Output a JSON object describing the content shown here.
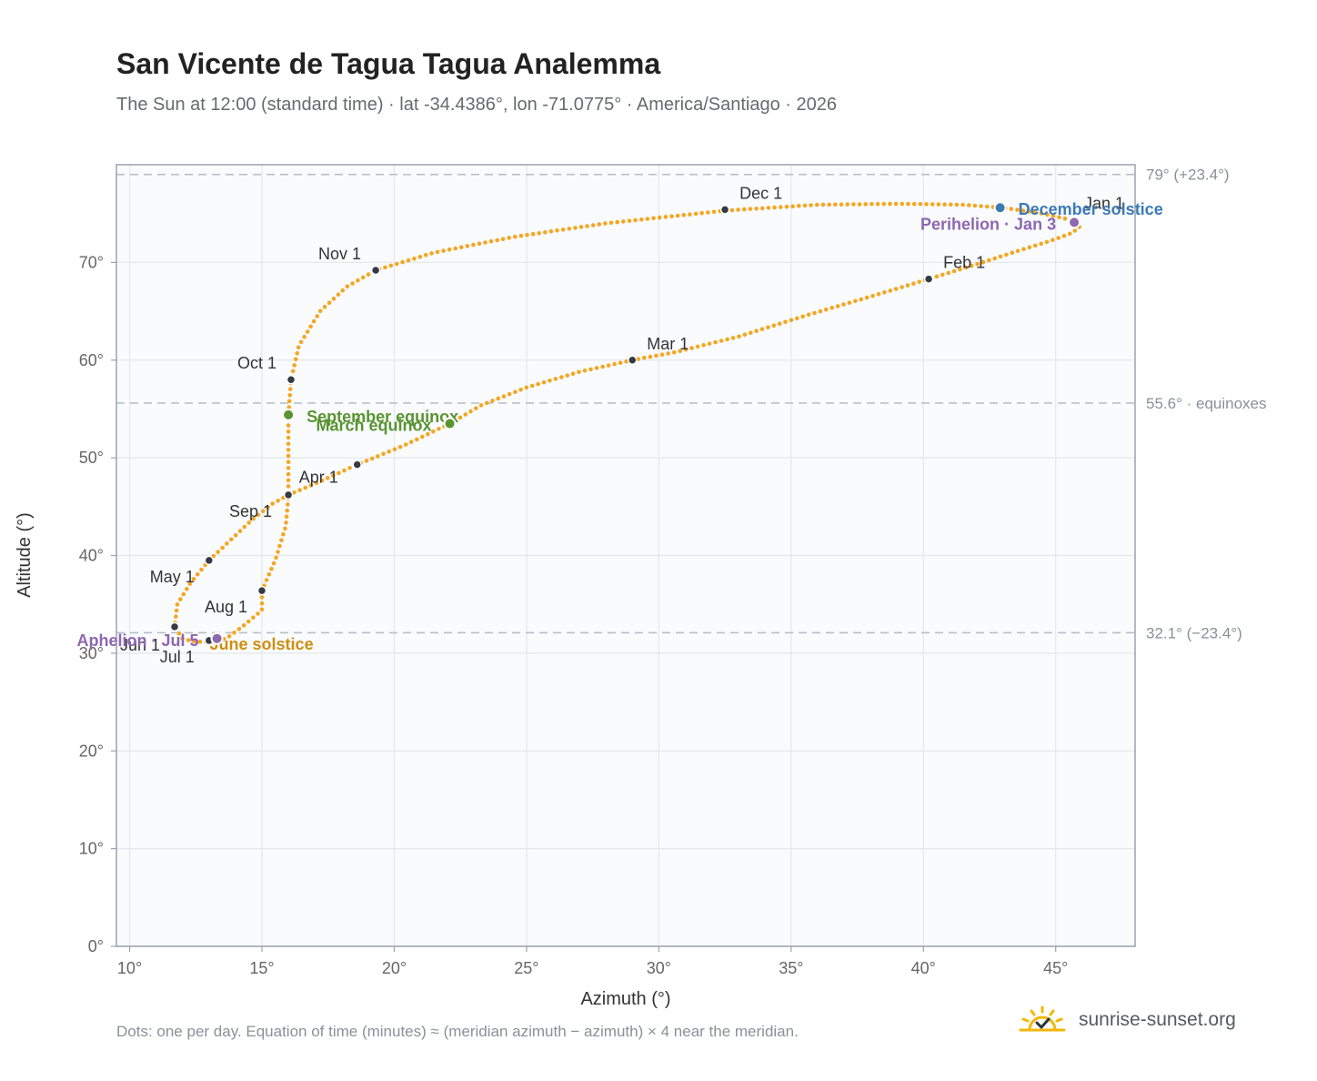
{
  "chart_data": {
    "type": "scatter",
    "title": "San Vicente de Tagua Tagua Analemma",
    "subtitle": "The Sun at 12:00 (standard time) · lat -34.4386°, lon -71.0775° · America/Santiago · 2026",
    "xlabel": "Azimuth (°)",
    "ylabel": "Altitude (°)",
    "xlim": [
      9.5,
      48
    ],
    "ylim": [
      0,
      80
    ],
    "x_ticks": [
      "10°",
      "15°",
      "20°",
      "25°",
      "30°",
      "35°",
      "40°",
      "45°"
    ],
    "y_ticks": [
      "0°",
      "10°",
      "20°",
      "30°",
      "40°",
      "50°",
      "60°",
      "70°"
    ],
    "grid": true,
    "curve_path": [
      [
        45.8,
        74.2
      ],
      [
        45.9,
        73.6
      ],
      [
        45.6,
        73.0
      ],
      [
        44.8,
        72.2
      ],
      [
        43.6,
        71.2
      ],
      [
        42.0,
        69.8
      ],
      [
        40.2,
        68.3
      ],
      [
        38.0,
        66.5
      ],
      [
        35.6,
        64.6
      ],
      [
        33.0,
        62.4
      ],
      [
        30.6,
        60.8
      ],
      [
        29.0,
        60.0
      ],
      [
        27.0,
        58.8
      ],
      [
        25.0,
        57.2
      ],
      [
        23.3,
        55.4
      ],
      [
        22.1,
        53.5
      ],
      [
        20.4,
        51.3
      ],
      [
        18.6,
        49.3
      ],
      [
        17.3,
        47.7
      ],
      [
        16.0,
        46.2
      ],
      [
        15.4,
        45.3
      ],
      [
        14.6,
        43.6
      ],
      [
        13.9,
        41.8
      ],
      [
        13.0,
        39.5
      ],
      [
        12.3,
        37.2
      ],
      [
        11.8,
        35.0
      ],
      [
        11.7,
        32.7
      ],
      [
        12.0,
        31.5
      ],
      [
        12.4,
        31.2
      ],
      [
        13.2,
        31.1
      ],
      [
        13.7,
        31.6
      ],
      [
        14.3,
        32.8
      ],
      [
        15.0,
        34.4
      ],
      [
        15.0,
        36.4
      ],
      [
        15.5,
        39.5
      ],
      [
        15.9,
        43.0
      ],
      [
        16.0,
        46.0
      ],
      [
        16.0,
        50.0
      ],
      [
        16.0,
        54.4
      ],
      [
        16.1,
        58.0
      ],
      [
        16.4,
        61.5
      ],
      [
        17.2,
        65.0
      ],
      [
        18.2,
        67.5
      ],
      [
        19.3,
        69.2
      ],
      [
        21.5,
        71.0
      ],
      [
        24.5,
        72.6
      ],
      [
        28.0,
        74.0
      ],
      [
        32.5,
        75.3
      ],
      [
        36.0,
        75.9
      ],
      [
        39.0,
        76.0
      ],
      [
        41.5,
        75.9
      ],
      [
        43.0,
        75.6
      ],
      [
        44.5,
        75.0
      ],
      [
        45.8,
        74.2
      ]
    ],
    "months": [
      {
        "label": "Jan 1",
        "x": 45.8,
        "y": 74.2,
        "lx": 8,
        "ly": -14,
        "anchor": "start"
      },
      {
        "label": "Feb 1",
        "x": 40.2,
        "y": 68.3,
        "lx": 16,
        "ly": -12,
        "anchor": "start"
      },
      {
        "label": "Mar 1",
        "x": 29.0,
        "y": 60.0,
        "lx": 16,
        "ly": -12,
        "anchor": "start"
      },
      {
        "label": "Apr 1",
        "x": 18.6,
        "y": 49.3,
        "lx": -64,
        "ly": 20,
        "anchor": "start"
      },
      {
        "label": "May 1",
        "x": 13.0,
        "y": 39.5,
        "lx": -16,
        "ly": 24,
        "anchor": "end"
      },
      {
        "label": "Jun 1",
        "x": 11.7,
        "y": 32.7,
        "lx": -16,
        "ly": 26,
        "anchor": "end"
      },
      {
        "label": "Jul 1",
        "x": 13.0,
        "y": 31.3,
        "lx": -16,
        "ly": 24,
        "anchor": "end"
      },
      {
        "label": "Aug 1",
        "x": 15.0,
        "y": 36.4,
        "lx": -16,
        "ly": 24,
        "anchor": "end"
      },
      {
        "label": "Sep 1",
        "x": 16.0,
        "y": 46.2,
        "lx": -18,
        "ly": 24,
        "anchor": "end"
      },
      {
        "label": "Oct 1",
        "x": 16.1,
        "y": 58.0,
        "lx": -16,
        "ly": -12,
        "anchor": "end"
      },
      {
        "label": "Nov 1",
        "x": 19.3,
        "y": 69.2,
        "lx": -16,
        "ly": -12,
        "anchor": "end"
      },
      {
        "label": "Dec 1",
        "x": 32.5,
        "y": 75.4,
        "lx": 16,
        "ly": -12,
        "anchor": "start"
      }
    ],
    "events": [
      {
        "label": "December solstice",
        "x": 42.9,
        "y": 75.6,
        "color": "#3d7ab5",
        "lx": 20,
        "ly": 8,
        "anchor": "start"
      },
      {
        "label": "Perihelion · Jan 3",
        "x": 45.7,
        "y": 74.1,
        "color": "#8e67b0",
        "lx": -20,
        "ly": 8,
        "anchor": "end"
      },
      {
        "label": "September equinox",
        "x": 16.0,
        "y": 54.4,
        "color": "#5a9332",
        "lx": 20,
        "ly": 8,
        "anchor": "start"
      },
      {
        "label": "March equinox",
        "x": 22.1,
        "y": 53.5,
        "color": "#5a9332",
        "lx": -20,
        "ly": 8,
        "anchor": "end"
      },
      {
        "label": "June solstice",
        "x": 13.3,
        "y": 31.5,
        "color": "#cf8e10",
        "lx": -8,
        "ly": 12,
        "anchor": "start"
      },
      {
        "label": "Aphelion · Jul 5",
        "x": 13.3,
        "y": 31.5,
        "color": "#8e67b0",
        "lx": -20,
        "ly": 8,
        "anchor": "end"
      }
    ],
    "reference_lines": [
      {
        "y": 79.0,
        "label": "79° (+23.4°)"
      },
      {
        "y": 55.6,
        "label": "55.6° · equinoxes"
      },
      {
        "y": 32.1,
        "label": "32.1° (−23.4°)"
      }
    ],
    "colors": {
      "curve": "#f5a623",
      "month_dot": "#333a44",
      "grid": "#e4e7ec",
      "plot_bg": "#f9fbfd",
      "axis": "#9aa3ad",
      "ref_line": "#b4bcc6"
    }
  },
  "footer": {
    "note": "Dots: one per day. Equation of time (minutes) ≈ (meridian azimuth − azimuth) × 4 near the meridian.",
    "brand": "sunrise-sunset.org",
    "brand_icon": "sun-check-icon"
  }
}
